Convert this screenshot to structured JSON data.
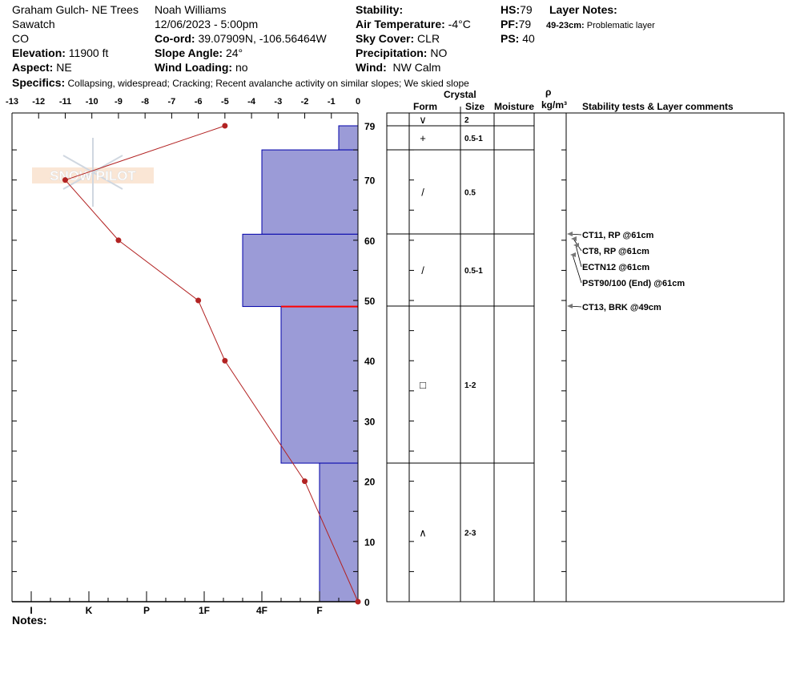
{
  "header": {
    "location": "Graham Gulch- NE Trees",
    "range": "Sawatch",
    "state": "CO",
    "elevation_label": "Elevation:",
    "elevation": "11900 ft",
    "aspect_label": "Aspect:",
    "aspect": "NE",
    "observer": "Noah Williams",
    "datetime": "12/06/2023 - 5:00pm",
    "coord_label": "Co-ord:",
    "coord": "39.07909N, -106.56464W",
    "slope_label": "Slope Angle:",
    "slope": "24°",
    "wind_loading_label": "Wind Loading:",
    "wind_loading": "no",
    "stability_label": "Stability:",
    "air_temp_label": "Air Temperature:",
    "air_temp": "-4°C",
    "sky_label": "Sky Cover:",
    "sky": "CLR",
    "precip_label": "Precipitation:",
    "precip": "NO",
    "wind_label": "Wind:",
    "wind": "NW Calm",
    "hs_label": "HS:",
    "hs": "79",
    "pf_label": "PF:",
    "pf": "79",
    "ps_label": "PS:",
    "ps": "40",
    "layer_notes_label": "Layer Notes:",
    "layer_note_range": "49-23cm:",
    "layer_note": "Problematic layer",
    "specifics_label": "Specifics:",
    "specifics": "Collapsing, widespread; Cracking; Recent avalanche activity on similar slopes; We skied slope",
    "notes_label": "Notes:"
  },
  "table_headers": {
    "crystal": "Crystal",
    "form": "Form",
    "size": "Size",
    "moisture": "Moisture",
    "rho": "ρ",
    "density_unit": "kg/m³",
    "comments": "Stability tests & Layer comments"
  },
  "logo_text": "SNOW PILOT",
  "colors": {
    "bar": "#9b9bd7",
    "bar_edge": "#0000aa",
    "temp": "#b22222",
    "problem": "#ff0000"
  },
  "chart_data": {
    "type": "snow-profile",
    "temp_axis": {
      "ticks": [
        -13,
        -12,
        -11,
        -10,
        -9,
        -8,
        -7,
        -6,
        -5,
        -4,
        -3,
        -2,
        -1,
        0
      ],
      "range": [
        -13,
        0
      ]
    },
    "depth_axis": {
      "ticks": [
        79,
        70,
        60,
        50,
        40,
        30,
        20,
        10,
        0
      ],
      "range": [
        0,
        79
      ]
    },
    "hardness_axis": {
      "ticks": [
        "I",
        "K",
        "P",
        "1F",
        "4F",
        "F"
      ]
    },
    "temperature_profile": [
      {
        "depth": 79,
        "temp": -5
      },
      {
        "depth": 70,
        "temp": -11
      },
      {
        "depth": 60,
        "temp": -9
      },
      {
        "depth": 50,
        "temp": -6
      },
      {
        "depth": 40,
        "temp": -5
      },
      {
        "depth": 20,
        "temp": -2
      },
      {
        "depth": 0,
        "temp": 0
      }
    ],
    "hardness_layers": [
      {
        "top": 79,
        "bottom": 75,
        "hardness": "F-"
      },
      {
        "top": 75,
        "bottom": 61,
        "hardness": "4F"
      },
      {
        "top": 61,
        "bottom": 49,
        "hardness": "4F+"
      },
      {
        "top": 49,
        "bottom": 23,
        "hardness": "4F-"
      },
      {
        "top": 23,
        "bottom": 0,
        "hardness": "F"
      }
    ],
    "problem_depth": 49,
    "layers": [
      {
        "form": "∨",
        "size": "2"
      },
      {
        "form": "+",
        "size": "0.5-1"
      },
      {
        "form": "/",
        "size": "0.5"
      },
      {
        "form": "/",
        "size": "0.5-1"
      },
      {
        "form": "□",
        "size": "1-2"
      },
      {
        "form": "∧",
        "size": "2-3"
      }
    ],
    "tests": [
      {
        "label": "CT11, RP @61cm",
        "depth": 61
      },
      {
        "label": "CT8, RP @61cm",
        "depth": 61
      },
      {
        "label": "ECTN12 @61cm",
        "depth": 61
      },
      {
        "label": "PST90/100 (End) @61cm",
        "depth": 61
      },
      {
        "label": "CT13, BRK @49cm",
        "depth": 49
      }
    ]
  }
}
